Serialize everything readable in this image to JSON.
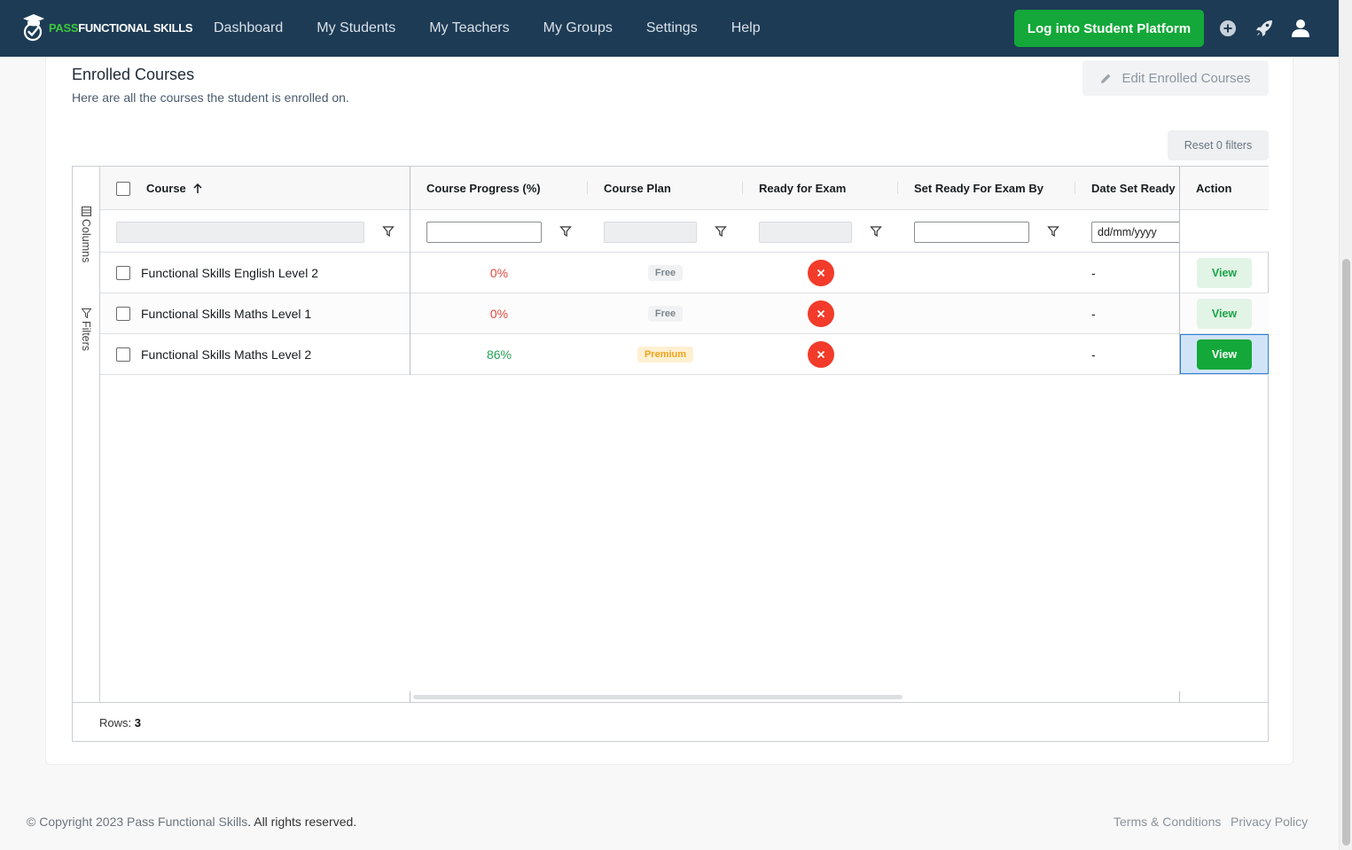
{
  "brand": {
    "pass": "PASS",
    "fs": "FUNCTIONAL SKILLS"
  },
  "nav": [
    "Dashboard",
    "My Students",
    "My Teachers",
    "My Groups",
    "Settings",
    "Help"
  ],
  "login_button": "Log into Student Platform",
  "icons": {
    "add": "plus-circle-icon",
    "rocket": "rocket-icon",
    "user": "user-icon"
  },
  "colors": {
    "navbar": "#1d3b55",
    "primary_green": "#13a839",
    "error_red": "#f23b2a"
  },
  "section": {
    "title": "Enrolled Courses",
    "subtitle": "Here are all the courses the student is enrolled on.",
    "edit_button": "Edit Enrolled Courses",
    "reset_button": "Reset 0 filters"
  },
  "grid": {
    "side_tabs": {
      "columns": "Columns",
      "filters": "Filters"
    },
    "columns": {
      "course": "Course",
      "progress": "Course Progress (%)",
      "plan": "Course Plan",
      "ready": "Ready for Exam",
      "set_by": "Set Ready For Exam By",
      "date_set": "Date Set Ready",
      "action": "Action"
    },
    "filters": {
      "date_placeholder": "dd/mm/yyyy"
    },
    "rows": [
      {
        "course": "Functional Skills English Level 2",
        "progress": "0%",
        "plan": "Free",
        "ready": "no",
        "set_by": "",
        "date": "-",
        "action": "View"
      },
      {
        "course": "Functional Skills Maths Level 1",
        "progress": "0%",
        "plan": "Free",
        "ready": "no",
        "set_by": "",
        "date": "-",
        "action": "View"
      },
      {
        "course": "Functional Skills Maths Level 2",
        "progress": "86%",
        "plan": "Premium",
        "ready": "no",
        "set_by": "",
        "date": "-",
        "action": "View"
      }
    ],
    "rows_label": "Rows:",
    "rows_count": "3"
  },
  "footer": {
    "copyright_prefix": "© Copyright 2023 ",
    "copyright_brand": "Pass Functional Skills",
    "copyright_suffix": ". All rights reserved.",
    "terms": "Terms & Conditions",
    "privacy": "Privacy Policy"
  }
}
